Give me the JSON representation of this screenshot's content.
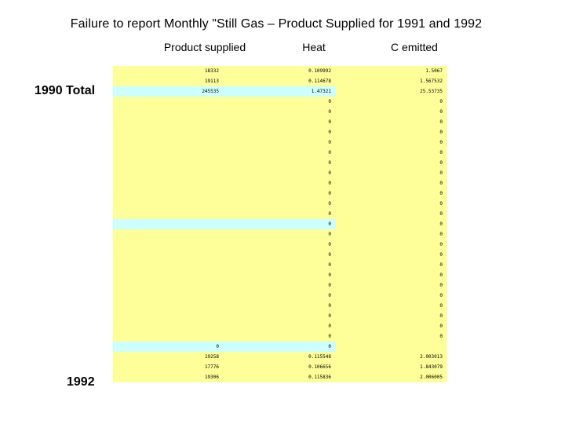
{
  "title": "Failure to report Monthly \"Still Gas – Product Supplied for 1991 and 1992",
  "columns": [
    "Product supplied",
    "Heat",
    "C emitted"
  ],
  "labels": {
    "total_1990": "1990 Total",
    "year_1992": "1992"
  },
  "colors": {
    "cell": "#ffff99",
    "highlight": "#ccffff"
  },
  "rows": [
    {
      "cells": [
        "18332",
        "0.109992",
        "1.5067"
      ],
      "hl": [
        false,
        false,
        false
      ]
    },
    {
      "cells": [
        "19113",
        "0.114678",
        "1.567532"
      ],
      "hl": [
        false,
        false,
        false
      ]
    },
    {
      "cells": [
        "245535",
        "1.47321",
        "25.53735"
      ],
      "hl": [
        true,
        true,
        false
      ]
    },
    {
      "cells": [
        "",
        "0",
        "0"
      ],
      "hl": [
        false,
        false,
        false
      ]
    },
    {
      "cells": [
        "",
        "0",
        "0"
      ],
      "hl": [
        false,
        false,
        false
      ]
    },
    {
      "cells": [
        "",
        "0",
        "0"
      ],
      "hl": [
        false,
        false,
        false
      ]
    },
    {
      "cells": [
        "",
        "0",
        "0"
      ],
      "hl": [
        false,
        false,
        false
      ]
    },
    {
      "cells": [
        "",
        "0",
        "0"
      ],
      "hl": [
        false,
        false,
        false
      ]
    },
    {
      "cells": [
        "",
        "0",
        "0"
      ],
      "hl": [
        false,
        false,
        false
      ]
    },
    {
      "cells": [
        "",
        "0",
        "0"
      ],
      "hl": [
        false,
        false,
        false
      ]
    },
    {
      "cells": [
        "",
        "0",
        "0"
      ],
      "hl": [
        false,
        false,
        false
      ]
    },
    {
      "cells": [
        "",
        "0",
        "0"
      ],
      "hl": [
        false,
        false,
        false
      ]
    },
    {
      "cells": [
        "",
        "0",
        "0"
      ],
      "hl": [
        false,
        false,
        false
      ]
    },
    {
      "cells": [
        "",
        "0",
        "0"
      ],
      "hl": [
        false,
        false,
        false
      ]
    },
    {
      "cells": [
        "",
        "0",
        "0"
      ],
      "hl": [
        false,
        false,
        false
      ]
    },
    {
      "cells": [
        "",
        "0",
        "0"
      ],
      "hl": [
        true,
        true,
        false
      ]
    },
    {
      "cells": [
        "",
        "0",
        "0"
      ],
      "hl": [
        false,
        false,
        false
      ]
    },
    {
      "cells": [
        "",
        "0",
        "0"
      ],
      "hl": [
        false,
        false,
        false
      ]
    },
    {
      "cells": [
        "",
        "0",
        "0"
      ],
      "hl": [
        false,
        false,
        false
      ]
    },
    {
      "cells": [
        "",
        "0",
        "0"
      ],
      "hl": [
        false,
        false,
        false
      ]
    },
    {
      "cells": [
        "",
        "0",
        "0"
      ],
      "hl": [
        false,
        false,
        false
      ]
    },
    {
      "cells": [
        "",
        "0",
        "0"
      ],
      "hl": [
        false,
        false,
        false
      ]
    },
    {
      "cells": [
        "",
        "0",
        "0"
      ],
      "hl": [
        false,
        false,
        false
      ]
    },
    {
      "cells": [
        "",
        "0",
        "0"
      ],
      "hl": [
        false,
        false,
        false
      ]
    },
    {
      "cells": [
        "",
        "0",
        "0"
      ],
      "hl": [
        false,
        false,
        false
      ]
    },
    {
      "cells": [
        "",
        "0",
        "0"
      ],
      "hl": [
        false,
        false,
        false
      ]
    },
    {
      "cells": [
        "",
        "0",
        "0"
      ],
      "hl": [
        false,
        false,
        false
      ]
    },
    {
      "cells": [
        "0",
        "0",
        ""
      ],
      "hl": [
        true,
        true,
        false
      ]
    },
    {
      "cells": [
        "19258",
        "0.115548",
        "2.003013"
      ],
      "hl": [
        false,
        false,
        false
      ]
    },
    {
      "cells": [
        "17776",
        "0.106656",
        "1.843079"
      ],
      "hl": [
        false,
        false,
        false
      ]
    },
    {
      "cells": [
        "19306",
        "0.115836",
        "2.006005"
      ],
      "hl": [
        false,
        false,
        false
      ]
    }
  ]
}
